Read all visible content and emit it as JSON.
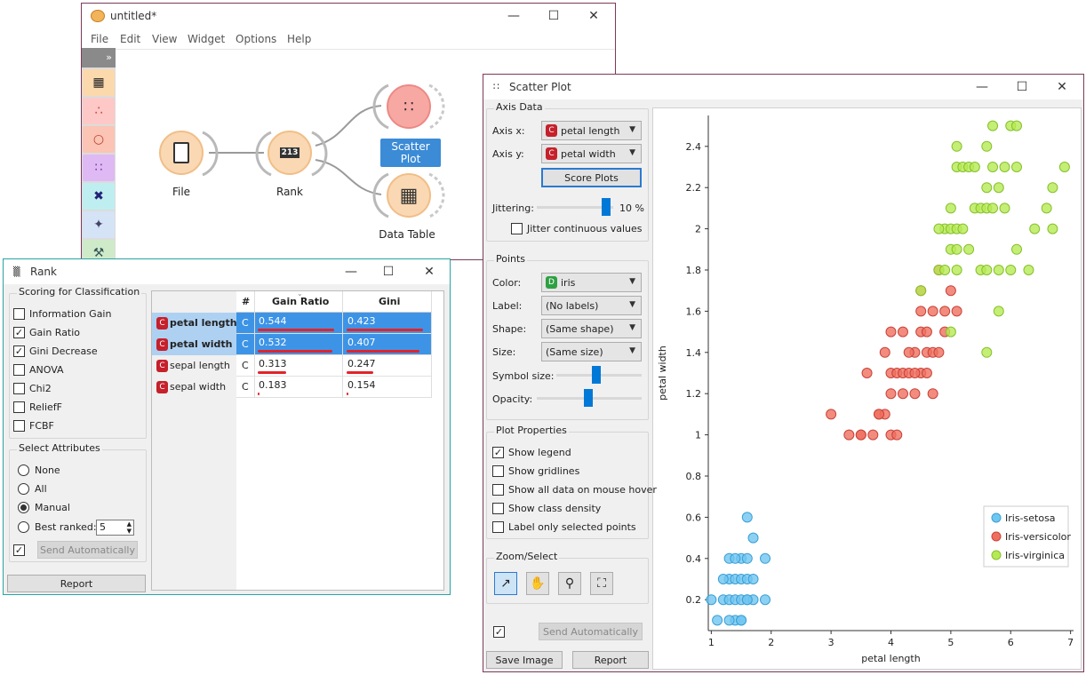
{
  "canvas_window": {
    "title": "untitled*",
    "menu": [
      "File",
      "Edit",
      "View",
      "Widget",
      "Options",
      "Help"
    ],
    "toolbox_toggle": "»",
    "nodes": {
      "file": "File",
      "rank": "Rank",
      "rank_icon_text": "213",
      "scatter": "Scatter Plot",
      "table": "Data Table"
    }
  },
  "rank_window": {
    "title": "Rank",
    "scoring_title": "Scoring for Classification",
    "scorers": [
      {
        "label": "Information Gain",
        "checked": false
      },
      {
        "label": "Gain Ratio",
        "checked": true
      },
      {
        "label": "Gini Decrease",
        "checked": true
      },
      {
        "label": "ANOVA",
        "checked": false
      },
      {
        "label": "Chi2",
        "checked": false
      },
      {
        "label": "ReliefF",
        "checked": false
      },
      {
        "label": "FCBF",
        "checked": false
      }
    ],
    "select_title": "Select Attributes",
    "select_options": [
      "None",
      "All",
      "Manual",
      "Best ranked:"
    ],
    "selected_option": "Manual",
    "best_ranked_value": "5",
    "send_auto": "Send Automatically",
    "report": "Report",
    "table": {
      "headers": [
        "#",
        "Gain Ratio",
        "Gini"
      ],
      "rows": [
        {
          "name": "petal length",
          "type": "C",
          "gain": "0.544",
          "gini": "0.423",
          "selected": true,
          "gain_frac": 0.93,
          "gini_frac": 0.93
        },
        {
          "name": "petal width",
          "type": "C",
          "gain": "0.532",
          "gini": "0.407",
          "selected": true,
          "gain_frac": 0.91,
          "gini_frac": 0.89
        },
        {
          "name": "sepal length",
          "type": "C",
          "gain": "0.313",
          "gini": "0.247",
          "selected": false,
          "gain_frac": 0.35,
          "gini_frac": 0.33
        },
        {
          "name": "sepal width",
          "type": "C",
          "gain": "0.183",
          "gini": "0.154",
          "selected": false,
          "gain_frac": 0.02,
          "gini_frac": 0.02
        }
      ]
    }
  },
  "scatter_window": {
    "title": "Scatter Plot",
    "axis_data_title": "Axis Data",
    "axis_x_label": "Axis x:",
    "axis_x_value": "petal length",
    "axis_y_label": "Axis y:",
    "axis_y_value": "petal width",
    "score_plots": "Score Plots",
    "jittering_label": "Jittering:",
    "jittering_value": "10 %",
    "jitter_continuous": "Jitter continuous values",
    "points_title": "Points",
    "color_label": "Color:",
    "color_value": "iris",
    "label_label": "Label:",
    "label_value": "(No labels)",
    "shape_label": "Shape:",
    "shape_value": "(Same shape)",
    "size_label": "Size:",
    "size_value": "(Same size)",
    "symbol_size_label": "Symbol size:",
    "opacity_label": "Opacity:",
    "plot_props_title": "Plot Properties",
    "plot_props": [
      {
        "label": "Show legend",
        "checked": true
      },
      {
        "label": "Show gridlines",
        "checked": false
      },
      {
        "label": "Show all data on mouse hover",
        "checked": false
      },
      {
        "label": "Show class density",
        "checked": false
      },
      {
        "label": "Label only selected points",
        "checked": false
      }
    ],
    "zoom_title": "Zoom/Select",
    "send_auto": "Send Automatically",
    "save_image": "Save Image",
    "report": "Report"
  },
  "chart_data": {
    "type": "scatter",
    "title": "",
    "xlabel": "petal length",
    "ylabel": "petal width",
    "xlim": [
      0.95,
      7.05
    ],
    "ylim": [
      0.05,
      2.55
    ],
    "xticks": [
      1,
      2,
      3,
      4,
      5,
      6,
      7
    ],
    "yticks": [
      0.2,
      0.4,
      0.6,
      0.8,
      1,
      1.2,
      1.4,
      1.6,
      1.8,
      2,
      2.2,
      2.4
    ],
    "legend_position": "bottom-right",
    "series": [
      {
        "name": "Iris-setosa",
        "color": "#6fc6f0",
        "stroke": "#3a9fd6",
        "points": [
          [
            1.0,
            0.2
          ],
          [
            1.1,
            0.1
          ],
          [
            1.2,
            0.2
          ],
          [
            1.3,
            0.2
          ],
          [
            1.3,
            0.3
          ],
          [
            1.3,
            0.4
          ],
          [
            1.4,
            0.2
          ],
          [
            1.4,
            0.1
          ],
          [
            1.4,
            0.3
          ],
          [
            1.5,
            0.2
          ],
          [
            1.5,
            0.4
          ],
          [
            1.5,
            0.1
          ],
          [
            1.6,
            0.2
          ],
          [
            1.6,
            0.6
          ],
          [
            1.6,
            0.4
          ],
          [
            1.7,
            0.2
          ],
          [
            1.7,
            0.5
          ],
          [
            1.9,
            0.2
          ],
          [
            1.9,
            0.4
          ],
          [
            1.5,
            0.3
          ],
          [
            1.4,
            0.4
          ],
          [
            1.6,
            0.3
          ],
          [
            1.2,
            0.3
          ],
          [
            1.3,
            0.1
          ],
          [
            1.5,
            0.1
          ],
          [
            1.6,
            0.2
          ],
          [
            1.7,
            0.3
          ]
        ]
      },
      {
        "name": "Iris-versicolor",
        "color": "#ef6f5f",
        "stroke": "#c94238",
        "points": [
          [
            3.0,
            1.1
          ],
          [
            3.3,
            1.0
          ],
          [
            3.5,
            1.0
          ],
          [
            3.7,
            1.0
          ],
          [
            3.6,
            1.3
          ],
          [
            3.8,
            1.1
          ],
          [
            3.9,
            1.1
          ],
          [
            3.9,
            1.4
          ],
          [
            4.0,
            1.0
          ],
          [
            4.0,
            1.2
          ],
          [
            4.0,
            1.3
          ],
          [
            4.1,
            1.0
          ],
          [
            4.1,
            1.3
          ],
          [
            4.2,
            1.3
          ],
          [
            4.2,
            1.5
          ],
          [
            4.3,
            1.3
          ],
          [
            4.4,
            1.2
          ],
          [
            4.4,
            1.4
          ],
          [
            4.5,
            1.5
          ],
          [
            4.5,
            1.3
          ],
          [
            4.6,
            1.5
          ],
          [
            4.6,
            1.4
          ],
          [
            4.7,
            1.4
          ],
          [
            4.7,
            1.2
          ],
          [
            4.7,
            1.6
          ],
          [
            4.8,
            1.8
          ],
          [
            4.8,
            1.4
          ],
          [
            4.9,
            1.5
          ],
          [
            5.0,
            1.7
          ],
          [
            5.1,
            1.6
          ],
          [
            4.5,
            1.6
          ],
          [
            4.0,
            1.5
          ],
          [
            3.5,
            1.0
          ],
          [
            4.2,
            1.2
          ],
          [
            4.6,
            1.3
          ],
          [
            4.5,
            1.7
          ],
          [
            4.9,
            1.6
          ],
          [
            4.4,
            1.3
          ],
          [
            3.8,
            1.1
          ],
          [
            4.3,
            1.4
          ]
        ]
      },
      {
        "name": "Iris-virginica",
        "color": "#b6ea54",
        "stroke": "#85c12a",
        "points": [
          [
            4.5,
            1.7
          ],
          [
            4.8,
            1.8
          ],
          [
            4.9,
            1.8
          ],
          [
            4.9,
            2.0
          ],
          [
            5.0,
            1.5
          ],
          [
            5.0,
            1.9
          ],
          [
            5.0,
            2.0
          ],
          [
            5.1,
            1.8
          ],
          [
            5.1,
            1.9
          ],
          [
            5.1,
            2.0
          ],
          [
            5.1,
            2.3
          ],
          [
            5.1,
            2.4
          ],
          [
            5.2,
            2.0
          ],
          [
            5.2,
            2.3
          ],
          [
            5.3,
            1.9
          ],
          [
            5.3,
            2.3
          ],
          [
            5.4,
            2.1
          ],
          [
            5.4,
            2.3
          ],
          [
            5.5,
            1.8
          ],
          [
            5.5,
            2.1
          ],
          [
            5.6,
            1.4
          ],
          [
            5.6,
            1.8
          ],
          [
            5.6,
            2.1
          ],
          [
            5.6,
            2.2
          ],
          [
            5.6,
            2.4
          ],
          [
            5.7,
            2.1
          ],
          [
            5.7,
            2.3
          ],
          [
            5.7,
            2.5
          ],
          [
            5.8,
            1.6
          ],
          [
            5.8,
            1.8
          ],
          [
            5.8,
            2.2
          ],
          [
            5.9,
            2.1
          ],
          [
            5.9,
            2.3
          ],
          [
            6.0,
            1.8
          ],
          [
            6.0,
            2.5
          ],
          [
            6.1,
            1.9
          ],
          [
            6.1,
            2.3
          ],
          [
            6.1,
            2.5
          ],
          [
            6.3,
            1.8
          ],
          [
            6.4,
            2.0
          ],
          [
            6.6,
            2.1
          ],
          [
            6.7,
            2.0
          ],
          [
            6.7,
            2.2
          ],
          [
            6.9,
            2.3
          ],
          [
            4.8,
            2.0
          ],
          [
            5.0,
            2.1
          ]
        ]
      }
    ]
  }
}
